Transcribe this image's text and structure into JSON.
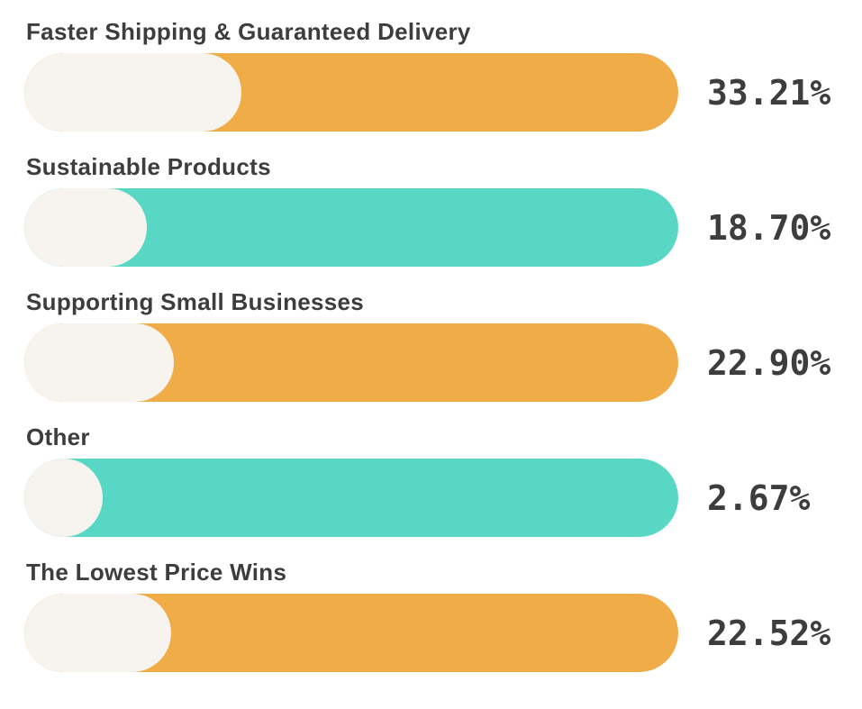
{
  "page": {
    "background": "#ffffff"
  },
  "chart_data": {
    "type": "bar",
    "orientation": "horizontal",
    "unit": "%",
    "categories": [
      "Faster Shipping & Guaranteed Delivery",
      "Sustainable Products",
      "Supporting Small Businesses",
      "Other",
      "The Lowest Price Wins"
    ],
    "values": [
      33.21,
      18.7,
      22.9,
      2.67,
      22.52
    ],
    "display_values": [
      "33.21%",
      "18.70%",
      "22.90%",
      "2.67%",
      "22.52%"
    ],
    "bar_colors": [
      "#F0AC47",
      "#58D8C4",
      "#F0AC47",
      "#58D8C4",
      "#F0AC47"
    ],
    "overlay_fill_color": "#F7F3EE",
    "text_color": "#3D3D3D",
    "xlim": [
      0,
      100
    ],
    "grid": false,
    "legend": false,
    "axes_visible": false,
    "value_label_position": "right-of-bar"
  }
}
